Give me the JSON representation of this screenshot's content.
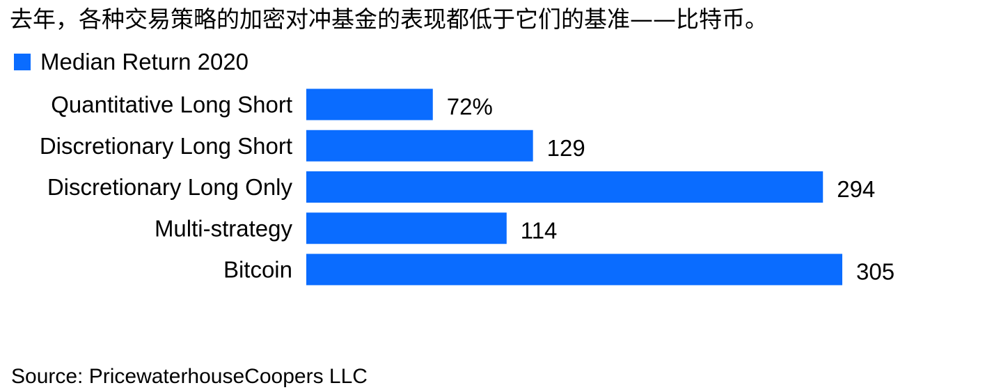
{
  "title": "去年，各种交易策略的加密对冲基金的表现都低于它们的基准——比特币。",
  "source": "Source: PricewaterhouseCoopers LLC",
  "colors": {
    "bar": "#0A6CFF",
    "text": "#000000",
    "background": "#FFFFFF"
  },
  "chart_data": {
    "type": "bar",
    "orientation": "horizontal",
    "categories": [
      "Quantitative Long Short",
      "Discretionary Long Short",
      "Discretionary Long Only",
      "Multi-strategy",
      "Bitcoin"
    ],
    "series": [
      {
        "name": "Median Return 2020",
        "values": [
          72,
          129,
          294,
          114,
          305
        ],
        "labels": [
          "72%",
          "129",
          "294",
          "114",
          "305"
        ]
      }
    ],
    "title": "去年，各种交易策略的加密对冲基金的表现都低于它们的基准——比特币。",
    "xlabel": "",
    "ylabel": "",
    "xlim": [
      0,
      305
    ],
    "grid": false,
    "legend": "top-left"
  }
}
